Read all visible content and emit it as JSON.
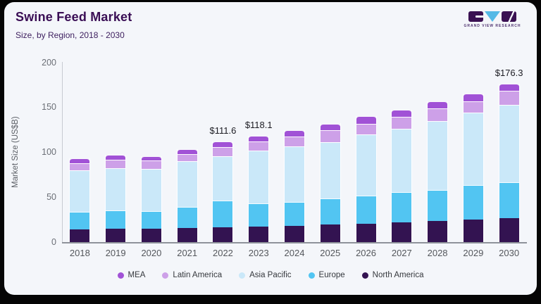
{
  "header": {
    "title": "Swine Feed Market",
    "subtitle": "Size, by Region, 2018 - 2030",
    "brand": "GRAND VIEW RESEARCH"
  },
  "chart_data": {
    "type": "bar",
    "stacked": true,
    "title": "Swine Feed Market",
    "subtitle": "Size, by Region, 2018 - 2030",
    "ylabel": "Market Size (US$B)",
    "ylim": [
      0,
      200
    ],
    "yticks": [
      0,
      50,
      100,
      150,
      200
    ],
    "grid": false,
    "legend_position": "bottom",
    "categories": [
      "2018",
      "2019",
      "2020",
      "2021",
      "2022",
      "2023",
      "2024",
      "2025",
      "2026",
      "2027",
      "2028",
      "2029",
      "2030"
    ],
    "series": [
      {
        "name": "North America",
        "color": "#331351",
        "values": [
          14.0,
          15.0,
          14.5,
          16.0,
          16.5,
          17.1,
          17.9,
          19.7,
          20.5,
          22.3,
          23.6,
          25.4,
          27.0
        ]
      },
      {
        "name": "Europe",
        "color": "#52c5f2",
        "values": [
          19.5,
          20.4,
          20.1,
          23.3,
          29.8,
          26.1,
          27.1,
          28.7,
          31.0,
          33.4,
          34.7,
          38.2,
          39.5
        ]
      },
      {
        "name": "Asia Pacific",
        "color": "#cae8f9",
        "values": [
          46.0,
          47.0,
          47.2,
          50.4,
          49.5,
          58.8,
          61.6,
          62.7,
          67.9,
          70.3,
          76.2,
          80.1,
          86.0
        ]
      },
      {
        "name": "Latin America",
        "color": "#cda0e8",
        "values": [
          8.0,
          9.6,
          8.9,
          7.8,
          9.5,
          9.8,
          10.5,
          13.0,
          12.5,
          13.0,
          13.9,
          13.1,
          16.0
        ]
      },
      {
        "name": "MEA",
        "color": "#a152d6",
        "values": [
          5.3,
          5.3,
          4.8,
          5.5,
          6.3,
          6.3,
          7.0,
          7.8,
          7.9,
          8.1,
          8.4,
          8.6,
          7.8
        ]
      }
    ],
    "totals": [
      92.8,
      97.3,
      95.5,
      103.0,
      111.6,
      118.1,
      124.1,
      131.9,
      139.8,
      147.1,
      156.8,
      165.4,
      176.3
    ],
    "data_labels": {
      "2022": "$111.6",
      "2023": "$118.1",
      "2030": "$176.3"
    },
    "legend_order": [
      "MEA",
      "Latin America",
      "Asia Pacific",
      "Europe",
      "North America"
    ]
  }
}
